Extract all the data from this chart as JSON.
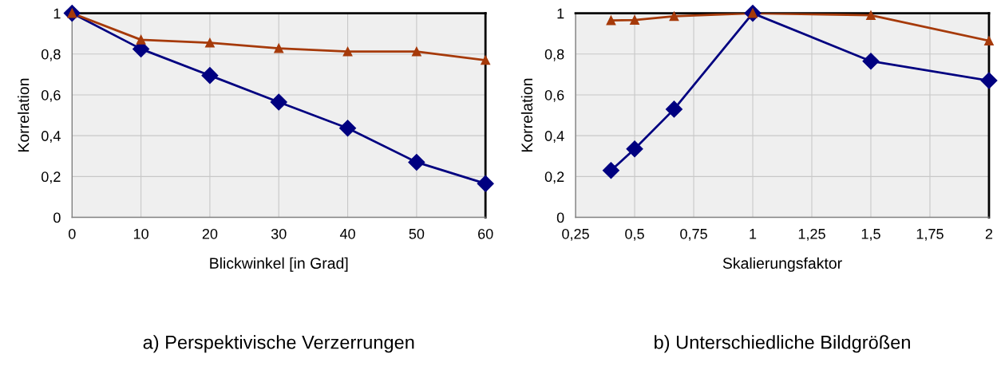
{
  "chart_data": [
    {
      "type": "line",
      "title": "a) Perspektivische Verzerrungen",
      "xlabel": "Blickwinkel [in Grad]",
      "ylabel": "Korrelation",
      "x": [
        0,
        10,
        20,
        30,
        40,
        50,
        60
      ],
      "series": [
        {
          "color": "#000080",
          "marker": "diamond",
          "values": [
            1.0,
            0.825,
            0.695,
            0.565,
            0.437,
            0.27,
            0.165
          ]
        },
        {
          "color": "#a63a0a",
          "marker": "triangle",
          "values": [
            1.0,
            0.87,
            0.855,
            0.828,
            0.812,
            0.812,
            0.77
          ]
        }
      ],
      "xlim": [
        0,
        60
      ],
      "xticks": [
        0,
        10,
        20,
        30,
        40,
        50,
        60
      ],
      "ylim": [
        0,
        1
      ],
      "yticks": [
        0,
        {
          "value": 0.2,
          "label": "0,2"
        },
        {
          "value": 0.4,
          "label": "0,4"
        },
        {
          "value": 0.6,
          "label": "0,6"
        },
        {
          "value": 0.8,
          "label": "0,8"
        },
        1
      ],
      "grid": true,
      "legend": false
    },
    {
      "type": "line",
      "title": "b) Unterschiedliche Bildgrößen",
      "xlabel": "Skalierungsfaktor",
      "ylabel": "Korrelation",
      "x": [
        0.4,
        0.5,
        0.667,
        1,
        1.5,
        2
      ],
      "series": [
        {
          "color": "#000080",
          "marker": "diamond",
          "values": [
            0.23,
            0.335,
            0.53,
            1.0,
            0.765,
            0.67
          ]
        },
        {
          "color": "#a63a0a",
          "marker": "triangle",
          "values": [
            0.965,
            0.967,
            0.985,
            1.0,
            0.99,
            0.865
          ]
        }
      ],
      "xlim": [
        0.25,
        2
      ],
      "xticks": [
        {
          "value": 0.25,
          "label": "0,25"
        },
        {
          "value": 0.5,
          "label": "0,5"
        },
        {
          "value": 0.75,
          "label": "0,75"
        },
        1,
        {
          "value": 1.25,
          "label": "1,25"
        },
        {
          "value": 1.5,
          "label": "1,5"
        },
        {
          "value": 1.75,
          "label": "1,75"
        },
        2
      ],
      "ylim": [
        0,
        1
      ],
      "yticks": [
        0,
        {
          "value": 0.2,
          "label": "0,2"
        },
        {
          "value": 0.4,
          "label": "0,4"
        },
        {
          "value": 0.6,
          "label": "0,6"
        },
        {
          "value": 0.8,
          "label": "0,8"
        },
        1
      ],
      "grid": true,
      "legend": false
    }
  ]
}
